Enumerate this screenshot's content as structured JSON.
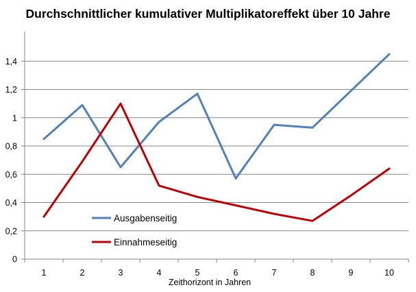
{
  "chart_data": {
    "type": "line",
    "title": "Durchschnittlicher kumulativer Multiplikatoreffekt über 10 Jahre",
    "xlabel": "Zeithorizont in Jahren",
    "ylabel": "",
    "categories": [
      "1",
      "2",
      "3",
      "4",
      "5",
      "6",
      "7",
      "8",
      "9",
      "10"
    ],
    "ylim": [
      0,
      1.6
    ],
    "yticks": [
      0,
      0.2,
      0.4,
      0.6,
      0.8,
      1.0,
      1.2,
      1.4
    ],
    "ytick_labels": [
      "0",
      "0,2",
      "0,4",
      "0,6",
      "0,8",
      "1",
      "1,2",
      "1,4"
    ],
    "grid": "horizontal",
    "legend_position": "bottom-left",
    "series": [
      {
        "name": "Ausgabenseitig",
        "color": "#4f81bd",
        "values": [
          0.85,
          1.09,
          0.65,
          0.97,
          1.17,
          0.57,
          0.95,
          0.93,
          1.19,
          1.45
        ]
      },
      {
        "name": "Einnahmeseitig",
        "color": "#c00000",
        "values": [
          0.3,
          0.69,
          1.1,
          0.52,
          0.44,
          0.38,
          0.32,
          0.27,
          0.45,
          0.64
        ]
      }
    ]
  }
}
